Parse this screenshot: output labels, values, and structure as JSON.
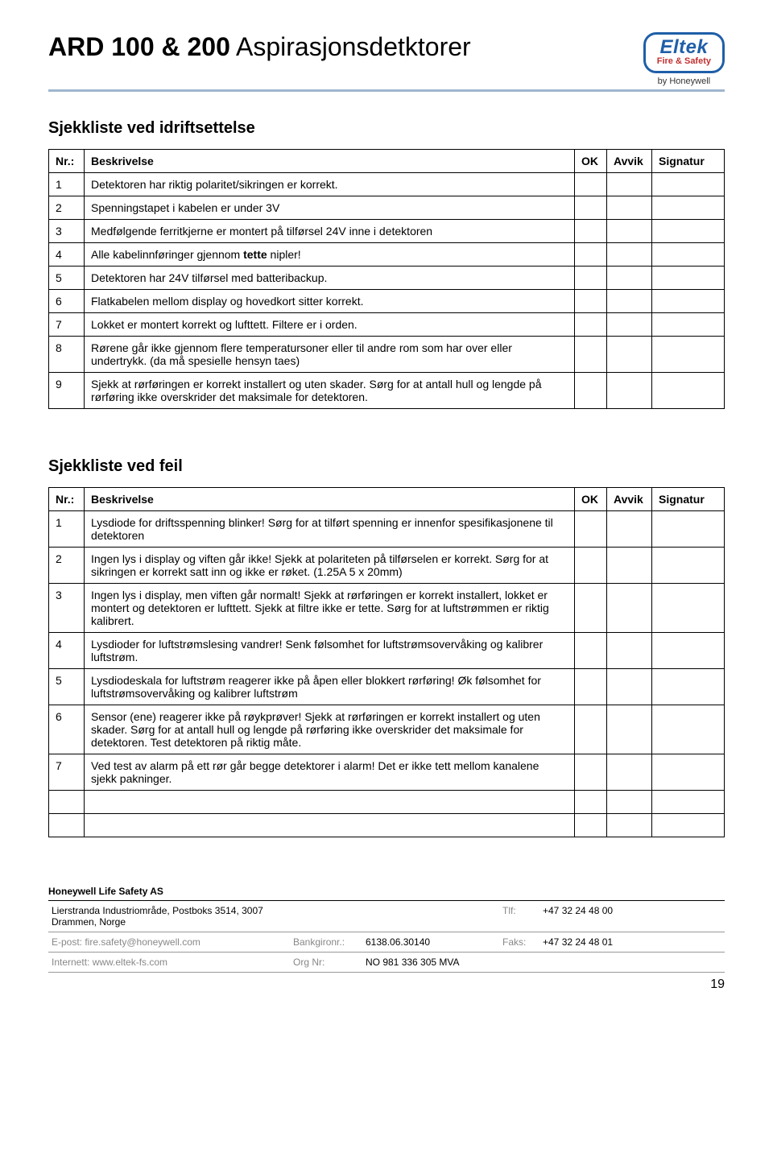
{
  "header": {
    "title_bold": "ARD 100 & 200",
    "title_light": " Aspirasjonsdetktorer",
    "logo_brand": "Eltek",
    "logo_tag": "Fire & Safety",
    "by": "by Honeywell",
    "border_color": "#1f5fa8",
    "tag_color": "#c13030",
    "rule_color": "#9fb6cf"
  },
  "section1": {
    "title": "Sjekkliste ved idriftsettelse",
    "columns": {
      "nr": "Nr.:",
      "desc": "Beskrivelse",
      "ok": "OK",
      "avvik": "Avvik",
      "sig": "Signatur"
    },
    "rows": [
      {
        "n": "1",
        "d": "Detektoren har riktig polaritet/sikringen er korrekt."
      },
      {
        "n": "2",
        "d": "Spenningstapet i kabelen er under 3V"
      },
      {
        "n": "3",
        "d": "Medfølgende ferritkjerne er montert på tilførsel 24V inne i detektoren"
      },
      {
        "n": "4",
        "d_pre": "Alle kabelinnføringer gjennom ",
        "d_bold": "tette",
        "d_post": " nipler!"
      },
      {
        "n": "5",
        "d": "Detektoren har 24V tilførsel med batteribackup."
      },
      {
        "n": "6",
        "d": "Flatkabelen mellom display og hovedkort sitter korrekt."
      },
      {
        "n": "7",
        "d": "Lokket er montert korrekt og lufttett. Filtere er i orden."
      },
      {
        "n": "8",
        "d": "Rørene går ikke gjennom flere temperatursoner eller til andre rom som har over eller undertrykk. (da må spesielle hensyn taes)"
      },
      {
        "n": "9",
        "d": "Sjekk at rørføringen er korrekt installert og uten skader. Sørg for at antall hull og lengde på rørføring ikke overskrider det maksimale for detektoren."
      }
    ]
  },
  "section2": {
    "title": "Sjekkliste ved feil",
    "columns": {
      "nr": "Nr.:",
      "desc": "Beskrivelse",
      "ok": "OK",
      "avvik": "Avvik",
      "sig": "Signatur"
    },
    "rows": [
      {
        "n": "1",
        "d": "Lysdiode for driftsspenning blinker! Sørg for at tilført spenning er innenfor spesifikasjonene til detektoren"
      },
      {
        "n": "2",
        "d": "Ingen lys i display og viften går ikke! Sjekk at polariteten på tilførselen er korrekt. Sørg for at sikringen er korrekt satt inn og ikke er røket. (1.25A 5 x 20mm)"
      },
      {
        "n": "3",
        "d": "Ingen lys i display, men viften går normalt! Sjekk at rørføringen er korrekt installert, lokket er montert og detektoren er lufttett. Sjekk at filtre ikke er tette. Sørg for at luftstrømmen er riktig kalibrert."
      },
      {
        "n": "4",
        "d": "Lysdioder for luftstrømslesing vandrer! Senk følsomhet for luftstrømsovervåking og kalibrer luftstrøm."
      },
      {
        "n": "5",
        "d": "Lysdiodeskala for luftstrøm reagerer ikke på åpen eller blokkert rørføring! Øk følsomhet for luftstrømsovervåking og kalibrer luftstrøm"
      },
      {
        "n": "6",
        "d": "Sensor (ene) reagerer ikke på røykprøver! Sjekk at rørføringen er korrekt installert og uten skader. Sørg for at antall hull og lengde på rørføring ikke overskrider det maksimale for detektoren. Test detektoren på riktig måte."
      },
      {
        "n": "7",
        "d": "Ved test av alarm på ett rør går begge detektorer i alarm! Det er ikke tett mellom kanalene sjekk pakninger."
      },
      {
        "n": "",
        "d": ""
      },
      {
        "n": "",
        "d": ""
      }
    ]
  },
  "footer": {
    "company": "Honeywell Life Safety AS",
    "rows": [
      {
        "l": "Lierstranda Industriområde, Postboks 3514, 3007 Drammen, Norge",
        "ml": "",
        "mv": "",
        "rl": "Tlf:",
        "r": "+47 32 24 48 00",
        "llbl": false
      },
      {
        "l": "E-post: fire.safety@honeywell.com",
        "ml": "Bankgironr.:",
        "mv": "6138.06.30140",
        "rl": "Faks:",
        "r": "+47 32 24 48 01",
        "llbl": true
      },
      {
        "l": "Internett: www.eltek-fs.com",
        "ml": "Org Nr:",
        "mv": "NO 981 336 305 MVA",
        "rl": "",
        "r": "",
        "llbl": true
      }
    ],
    "page": "19"
  }
}
